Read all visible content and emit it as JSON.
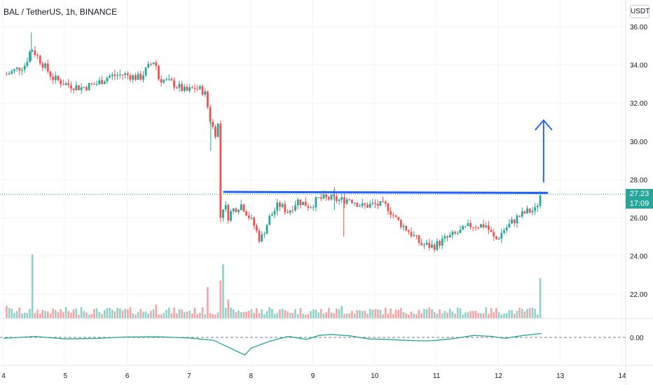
{
  "header": {
    "title": "BAL / TetherUS, 1h, BINANCE",
    "currency": "USDT"
  },
  "price_tag": {
    "price": "27.23",
    "countdown": "17:09"
  },
  "colors": {
    "up": "#26a69a",
    "down": "#ef5350",
    "volume_up": "#8fd1c9",
    "volume_down": "#f5a3a2",
    "indicator": "#26a69a",
    "drawing": "#2962ff",
    "grid": "#f0f3fa",
    "axis_text": "#131722"
  },
  "chart_data": [
    {
      "type": "candlestick",
      "title": "BAL / TetherUS, 1h, BINANCE",
      "y_ticks": [
        "36.00",
        "34.00",
        "32.00",
        "30.00",
        "28.00",
        "26.00",
        "24.00",
        "22.00"
      ],
      "x_ticks": [
        "4",
        "5",
        "6",
        "7",
        "8",
        "9",
        "10",
        "11",
        "12",
        "13",
        "14"
      ],
      "ylim": [
        21.4,
        36.6
      ],
      "xlim": [
        4.0,
        14.0
      ],
      "grid": true,
      "last_price": 27.23,
      "series": [
        {
          "x": [
            4.05,
            4.35,
            4.45,
            4.6,
            4.8,
            5.0,
            5.25,
            5.5,
            5.7,
            5.95,
            6.2,
            6.35,
            6.45,
            6.5,
            6.75,
            6.95,
            7.1,
            7.25,
            7.35,
            7.42,
            7.47,
            7.52,
            7.57,
            7.62,
            7.7,
            7.85,
            8.05,
            8.15,
            8.3,
            8.45,
            8.6,
            8.75,
            8.95,
            9.1,
            9.3,
            9.45,
            9.6,
            9.8,
            10.0,
            10.2,
            10.35,
            10.55,
            10.75,
            10.95,
            11.15,
            11.4,
            11.55,
            11.8,
            11.95,
            12.1,
            12.3,
            12.45,
            12.6,
            12.68
          ],
          "y": [
            33.5,
            34.0,
            34.9,
            34.2,
            33.3,
            33.0,
            32.8,
            33.0,
            33.4,
            33.5,
            33.3,
            33.9,
            34.3,
            33.3,
            33.0,
            32.6,
            32.8,
            32.6,
            31.0,
            30.4,
            30.9,
            26.1,
            26.9,
            26.0,
            26.4,
            26.7,
            25.6,
            24.8,
            26.0,
            26.7,
            26.3,
            26.9,
            26.6,
            27.0,
            27.0,
            26.9,
            27.0,
            26.6,
            26.7,
            26.6,
            25.9,
            25.3,
            24.6,
            24.5,
            24.9,
            25.3,
            25.6,
            25.6,
            24.8,
            25.4,
            26.0,
            26.3,
            26.4,
            27.23
          ],
          "name": ""
        }
      ],
      "volume": [
        {
          "x": 4.05,
          "v": 1.0
        },
        {
          "x": 4.45,
          "v": 5.1
        },
        {
          "x": 4.8,
          "v": 0.8
        },
        {
          "x": 5.25,
          "v": 0.9
        },
        {
          "x": 5.5,
          "v": 0.8
        },
        {
          "x": 6.45,
          "v": 1.1
        },
        {
          "x": 7.3,
          "v": 2.5
        },
        {
          "x": 7.52,
          "v": 3.0
        },
        {
          "x": 7.57,
          "v": 4.3
        },
        {
          "x": 7.62,
          "v": 1.5
        },
        {
          "x": 8.3,
          "v": 0.9
        },
        {
          "x": 9.45,
          "v": 1.0
        },
        {
          "x": 10.35,
          "v": 0.7
        },
        {
          "x": 11.15,
          "v": 0.6
        },
        {
          "x": 12.3,
          "v": 0.6
        },
        {
          "x": 12.68,
          "v": 3.2
        }
      ],
      "indicator": {
        "zero_label": "0.00",
        "x": [
          4.0,
          4.5,
          5.0,
          5.5,
          6.0,
          6.5,
          7.0,
          7.4,
          7.6,
          7.8,
          7.9,
          8.0,
          8.3,
          8.6,
          8.9,
          9.1,
          9.3,
          9.6,
          9.9,
          10.2,
          10.5,
          10.8,
          11.0,
          11.3,
          11.6,
          11.9,
          12.1,
          12.4,
          12.7
        ],
        "y": [
          -0.05,
          0.05,
          -0.08,
          -0.05,
          0.02,
          0.03,
          -0.03,
          -0.15,
          -0.45,
          -0.75,
          -0.9,
          -0.55,
          -0.2,
          0.05,
          -0.1,
          0.1,
          0.15,
          0.08,
          -0.08,
          -0.1,
          -0.15,
          -0.18,
          -0.15,
          -0.05,
          0.1,
          0.05,
          -0.05,
          0.1,
          0.2
        ]
      },
      "annotations": {
        "resistance_line": {
          "from": [
            7.55,
            27.35
          ],
          "to": [
            12.8,
            27.3
          ]
        },
        "arrow": {
          "x": 12.73,
          "from": 27.85,
          "to": 31.1
        }
      }
    }
  ]
}
